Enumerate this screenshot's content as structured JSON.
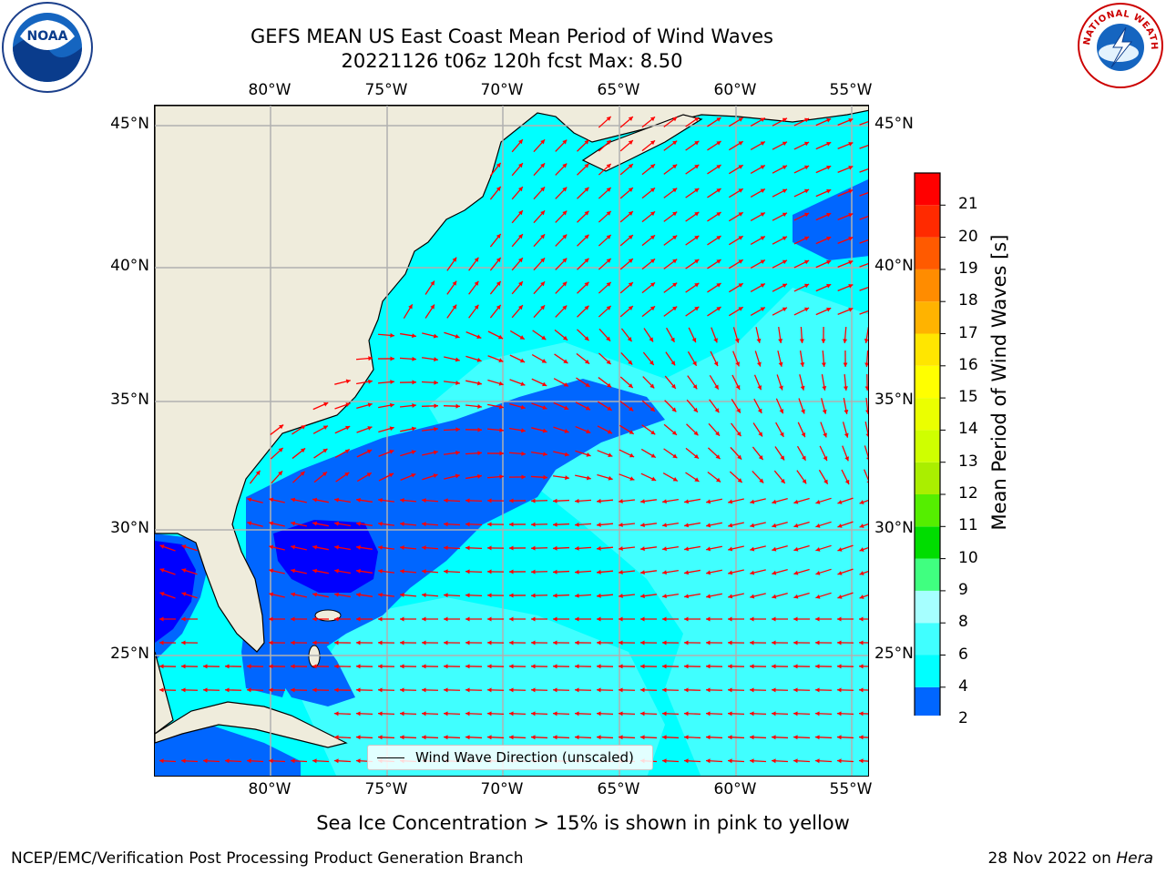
{
  "header": {
    "title_line1": "GEFS MEAN US East Coast Mean Period of Wind Waves",
    "title_line2": "20221126 t06z 120h fcst   Max: 8.50"
  },
  "logos": {
    "left": {
      "name": "noaa-logo",
      "text": "NOAA"
    },
    "right": {
      "name": "national-weather-service-logo",
      "text": "NATIONAL WEATHER SERVICE"
    }
  },
  "map": {
    "longitude_labels": [
      "80°W",
      "75°W",
      "70°W",
      "65°W",
      "60°W",
      "55°W"
    ],
    "latitude_labels": [
      "45°N",
      "40°N",
      "35°N",
      "30°N",
      "25°N"
    ],
    "land_color": "#efecdc",
    "legend_label": "Wind Wave Direction (unscaled)",
    "arrow_color": "#ff0000",
    "gridline_color": "#b0b0b0"
  },
  "colorbar": {
    "label": "Mean Period of Wind Waves [s]",
    "tick_labels": [
      "2",
      "4",
      "6",
      "8",
      "9",
      "10",
      "11",
      "12",
      "13",
      "14",
      "15",
      "16",
      "17",
      "18",
      "19",
      "20",
      "21"
    ],
    "colors": [
      "#0066ff",
      "#00ffff",
      "#40ffff",
      "#a6ffff",
      "#40ff80",
      "#00dd00",
      "#55ee00",
      "#aaee00",
      "#cfff00",
      "#ebff00",
      "#ffff00",
      "#ffe600",
      "#ffb300",
      "#ff8c00",
      "#ff5a00",
      "#ff2a00",
      "#ff0000"
    ],
    "extend_color": "#0000ff"
  },
  "footer": {
    "note": "Sea Ice Concentration > 15% is shown in pink to yellow",
    "credit": "NCEP/EMC/Verification Post Processing Product Generation Branch",
    "date": "28 Nov 2022 on",
    "host": "Hera"
  }
}
